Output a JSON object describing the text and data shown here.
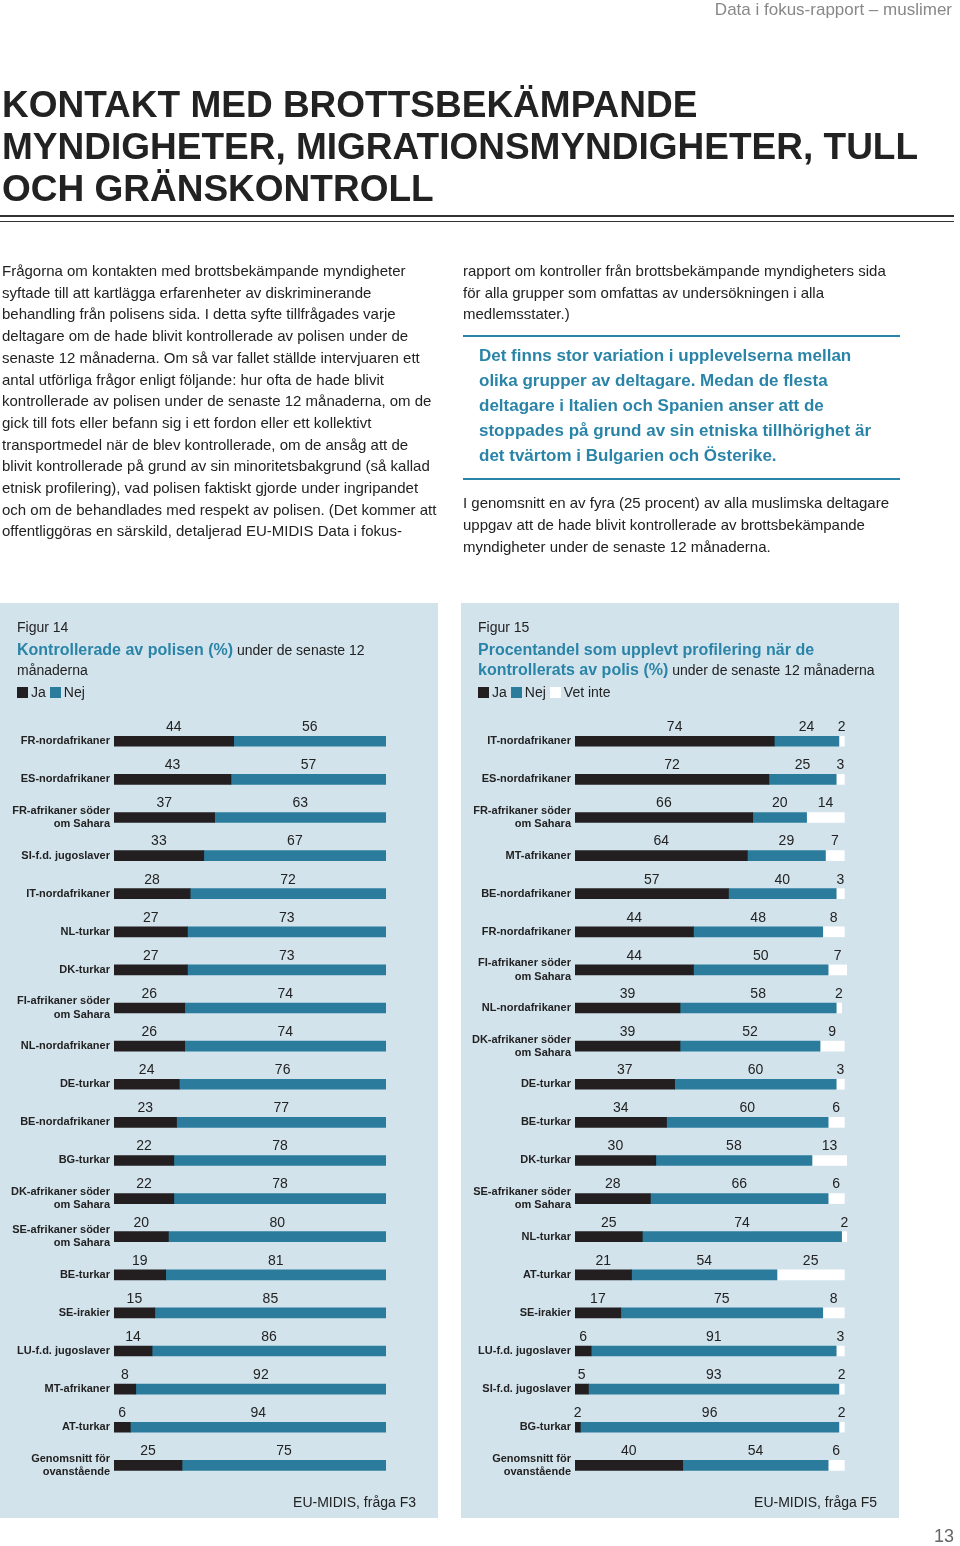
{
  "chart_data": [
    {
      "type": "other",
      "title": "KONTAKT MED BROTTSBEKÄMPANDE MYNDIGHETER, MIGRATIONSMYNDIGHETER, TULL OCH GRÄNSKONTROLL",
      "annotations": [
        "Data i fokus-rapport – muslimer",
        "Frågorna om kontakten med brottsbekämpande myndigheter syftade till att kartlägga erfarenheter av diskriminerande behandling från polisens sida. I detta syfte tillfrågades varje deltagare om de hade blivit kontrollerade av polisen under de senaste 12 månaderna. Om så var fallet ställde intervjuaren ett antal utförliga frågor enligt följande: hur ofta de hade blivit kontrollerade av polisen under de senaste 12 månaderna, om de gick till fots eller befann sig i ett fordon eller ett kollektivt transportmedel när de blev kontrollerade, om de ansåg att de blivit kontrollerade på grund av sin minoritetsbakgrund (så kallad etnisk profilering), vad polisen faktiskt gjorde under ingripandet och om de behandlades med respekt av polisen. (Det kommer att offentliggöras en särskild, detaljerad EU-MIDIS Data i fokus-rapport om kontroller från brottsbekämpande myndigheters sida för alla grupper som omfattas av undersökningen i alla medlemsstater.)",
        "Det finns stor variation i upplevelserna mellan olika grupper av deltagare. Medan de flesta deltagare i Italien och Spanien anser att de stoppades på grund av sin etniska tillhörighet är det tvärtom i Bulgarien och Österike.",
        "I genomsnitt en av fyra (25 procent) av alla muslimska deltagare uppgav att de hade blivit kontrollerade av brottsbekämpande myndigheter under de senaste 12 månaderna.",
        "13"
      ]
    },
    {
      "type": "bar",
      "orientation": "horizontal",
      "stacked": true,
      "title": "Kontrollerade av polisen (%)",
      "subtitle": "under de senaste 12 månaderna",
      "legend": "top left",
      "tick_labels": "y",
      "data_labels": true,
      "xlim": [
        0,
        100
      ],
      "annotations": [
        "Figur 14",
        "EU-MIDIS, fråga F3"
      ],
      "categories": [
        "FR-nordafrikaner",
        "ES-nordafrikaner",
        "FR-afrikaner söder om Sahara",
        "SI-f.d. jugoslaver",
        "IT-nordafrikaner",
        "NL-turkar",
        "DK-turkar",
        "FI-afrikaner söder om Sahara",
        "NL-nordafrikaner",
        "DE-turkar",
        "BE-nordafrikaner",
        "BG-turkar",
        "DK-afrikaner söder om Sahara",
        "SE-afrikaner söder om Sahara",
        "BE-turkar",
        "SE-irakier",
        "LU-f.d. jugoslaver",
        "MT-afrikaner",
        "AT-turkar",
        "Genomsnitt för ovanstående"
      ],
      "series": [
        {
          "name": "Ja",
          "color": "#231f20",
          "values": [
            44,
            43,
            37,
            33,
            28,
            27,
            27,
            26,
            26,
            24,
            23,
            22,
            22,
            20,
            19,
            15,
            14,
            8,
            6,
            25
          ]
        },
        {
          "name": "Nej",
          "color": "#2b7c9c",
          "values": [
            56,
            57,
            63,
            67,
            72,
            73,
            73,
            74,
            74,
            76,
            77,
            78,
            78,
            80,
            81,
            85,
            86,
            92,
            94,
            75
          ]
        }
      ]
    },
    {
      "type": "bar",
      "orientation": "horizontal",
      "stacked": true,
      "title": "Procentandel som upplevt profilering när de kontrollerats av polis (%)",
      "subtitle": "under de senaste 12 månaderna",
      "legend": "top left",
      "tick_labels": "y",
      "data_labels": true,
      "xlim": [
        0,
        101
      ],
      "annotations": [
        "Figur 15",
        "EU-MIDIS, fråga F5"
      ],
      "categories": [
        "IT-nordafrikaner",
        "ES-nordafrikaner",
        "FR-afrikaner söder om Sahara",
        "MT-afrikaner",
        "BE-nordafrikaner",
        "FR-nordafrikaner",
        "FI-afrikaner söder om Sahara",
        "NL-nordafrikaner",
        "DK-afrikaner söder om Sahara",
        "DE-turkar",
        "BE-turkar",
        "DK-turkar",
        "SE-afrikaner söder om Sahara",
        "NL-turkar",
        "AT-turkar",
        "SE-irakier",
        "LU-f.d. jugoslaver",
        "SI-f.d. jugoslaver",
        "BG-turkar",
        "Genomsnitt för ovanstående"
      ],
      "series": [
        {
          "name": "Ja",
          "color": "#231f20",
          "values": [
            74,
            72,
            66,
            64,
            57,
            44,
            44,
            39,
            39,
            37,
            34,
            30,
            28,
            25,
            21,
            17,
            6,
            5,
            2,
            40
          ]
        },
        {
          "name": "Nej",
          "color": "#2b7c9c",
          "values": [
            24,
            25,
            20,
            29,
            40,
            48,
            50,
            58,
            52,
            60,
            60,
            58,
            66,
            74,
            54,
            75,
            91,
            93,
            96,
            54
          ]
        },
        {
          "name": "Vet inte",
          "color": "#ffffff",
          "values": [
            2,
            3,
            14,
            7,
            3,
            8,
            7,
            2,
            9,
            3,
            6,
            13,
            6,
            2,
            25,
            8,
            3,
            2,
            2,
            6
          ]
        }
      ]
    }
  ]
}
